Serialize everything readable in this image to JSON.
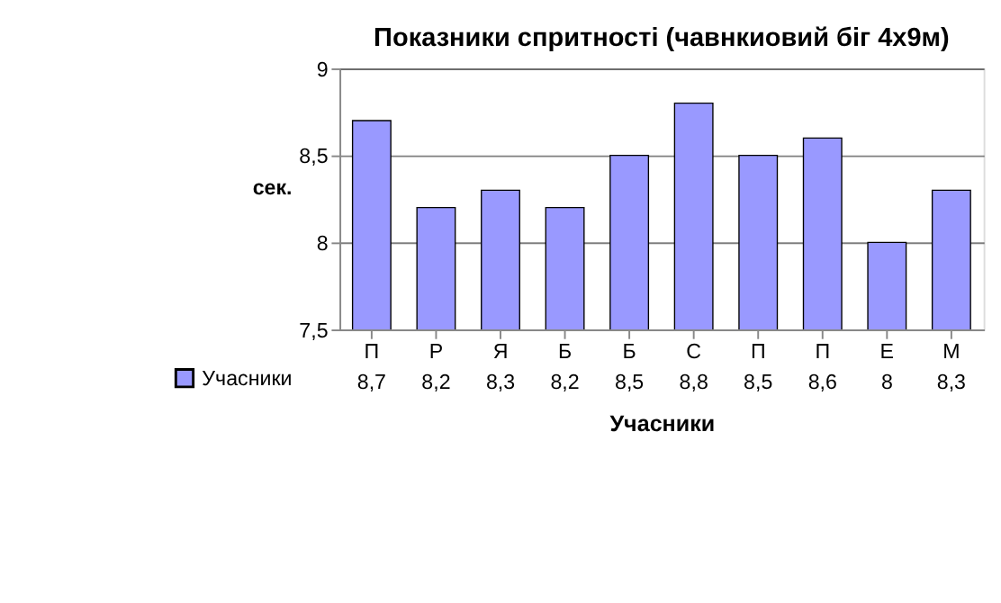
{
  "chart_data": {
    "type": "bar",
    "title": "Показники спритності (чавнкиовий біг 4х9м)",
    "ylabel": "сек.",
    "xlabel": "Учасники",
    "categories": [
      "П",
      "Р",
      "Я",
      "Б",
      "Б",
      "С",
      "П",
      "П",
      "Е",
      "М"
    ],
    "series": [
      {
        "name": "Учасники",
        "color": "#9999ff",
        "values": [
          8.7,
          8.2,
          8.3,
          8.2,
          8.5,
          8.8,
          8.5,
          8.6,
          8,
          8.3
        ],
        "value_labels": [
          "8,7",
          "8,2",
          "8,3",
          "8,2",
          "8,5",
          "8,8",
          "8,5",
          "8,6",
          "8",
          "8,3"
        ]
      }
    ],
    "ylim": [
      7.5,
      9
    ],
    "yticks": [
      {
        "value": 7.5,
        "label": "7,5"
      },
      8,
      {
        "value": 8.5,
        "label": "8,5"
      },
      9
    ],
    "grid": "y",
    "legend": "bottom"
  }
}
